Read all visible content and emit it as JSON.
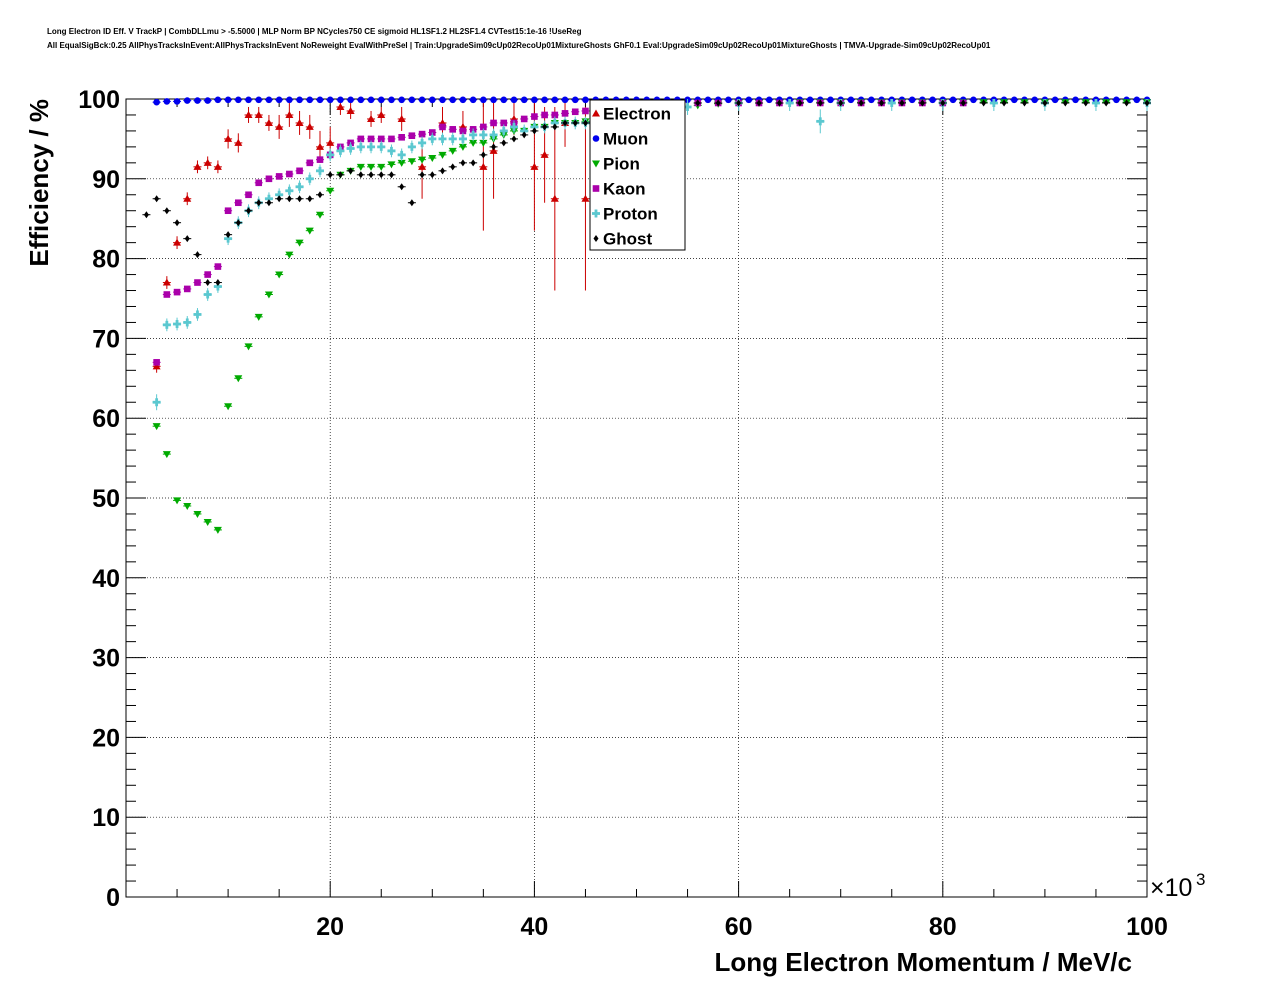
{
  "titles": {
    "line1": "Long Electron ID Eff. V TrackP | CombDLLmu > -5.5000 | MLP Norm BP NCycles750 CE sigmoid HL1SF1.2 HL2SF1.4 CVTest15:1e-16 !UseReg",
    "line2": "All EqualSigBck:0.25 AllPhysTracksInEvent:AllPhysTracksInEvent NoReweight EvalWithPreSel | Train:UpgradeSim09cUp02RecoUp01MixtureGhosts GhF0.1 Eval:UpgradeSim09cUp02RecoUp01MixtureGhosts | TMVA-Upgrade-Sim09cUp02RecoUp01"
  },
  "chart_data": {
    "type": "scatter",
    "xlabel": "Long Electron Momentum / MeV/c",
    "ylabel": "Efficiency / %",
    "x_multiplier": "×10",
    "x_multiplier_exp": "3",
    "xlim": [
      0,
      100
    ],
    "ylim": [
      0,
      100
    ],
    "x_ticks": [
      20,
      40,
      60,
      80,
      100
    ],
    "y_ticks": [
      0,
      10,
      20,
      30,
      40,
      50,
      60,
      70,
      80,
      90,
      100
    ],
    "grid": true,
    "legend_position": "top-center",
    "series": [
      {
        "name": "Electron",
        "color": "#cc0000",
        "marker": "triangle-up",
        "x": [
          3,
          4,
          5,
          6,
          7,
          8,
          9,
          10,
          11,
          12,
          13,
          14,
          15,
          16,
          17,
          18,
          19,
          20,
          21,
          22,
          24,
          25,
          27,
          29,
          31,
          33,
          35,
          36,
          38,
          40,
          41,
          42,
          43,
          45,
          46
        ],
        "y": [
          66.5,
          77,
          82,
          87.5,
          91.5,
          92,
          91.5,
          95,
          94.5,
          98,
          98,
          97,
          96.5,
          98,
          97,
          96.5,
          94,
          94.5,
          99,
          98.5,
          97.5,
          98,
          97.5,
          91.5,
          97,
          96.5,
          91.5,
          93.5,
          97.5,
          91.5,
          93,
          87.5,
          97,
          87.5,
          97
        ],
        "err": [
          0.8,
          0.8,
          0.8,
          0.8,
          0.8,
          0.8,
          0.8,
          1.2,
          1.2,
          1,
          1,
          1,
          1.5,
          1.5,
          1.5,
          1.5,
          2,
          2,
          1,
          1,
          1,
          1,
          1.5,
          4,
          2,
          2,
          8,
          6,
          2,
          8,
          6,
          11.5,
          3,
          11.5,
          3
        ]
      },
      {
        "name": "Muon",
        "color": "#0000ee",
        "marker": "circle",
        "x": [
          3,
          4,
          5,
          6,
          7,
          8,
          9,
          10,
          11,
          12,
          13,
          14,
          15,
          16,
          17,
          18,
          19,
          20,
          21,
          22,
          23,
          24,
          25,
          26,
          27,
          28,
          29,
          30,
          31,
          32,
          33,
          34,
          35,
          36,
          37,
          38,
          39,
          40,
          41,
          42,
          43,
          44,
          45,
          46,
          47,
          48,
          49,
          50,
          51,
          52,
          53,
          54,
          55,
          56,
          57,
          58,
          59,
          60,
          61,
          62,
          63,
          64,
          65,
          66,
          67,
          68,
          69,
          70,
          71,
          72,
          73,
          74,
          75,
          76,
          77,
          78,
          79,
          80,
          81,
          82,
          83,
          84,
          85,
          86,
          87,
          88,
          89,
          90,
          91,
          92,
          93,
          94,
          95,
          96,
          97,
          98,
          99,
          100
        ],
        "y": [
          99.6,
          99.7,
          99.7,
          99.8,
          99.8,
          99.8,
          99.9,
          99.9,
          99.9,
          99.9,
          99.9,
          99.9,
          99.9,
          99.9,
          99.9,
          99.9,
          99.9,
          99.9,
          99.9,
          99.9,
          99.9,
          99.9,
          99.9,
          99.9,
          99.9,
          99.9,
          99.9,
          99.9,
          99.9,
          99.9,
          99.9,
          99.9,
          99.9,
          99.9,
          99.9,
          99.9,
          99.9,
          99.9,
          99.9,
          99.9,
          99.9,
          99.9,
          99.9,
          99.9,
          99.9,
          99.9,
          99.9,
          99.9,
          99.9,
          99.9,
          99.9,
          99.9,
          99.9,
          99.9,
          99.9,
          99.9,
          99.9,
          99.9,
          99.9,
          99.9,
          99.9,
          99.9,
          99.9,
          99.9,
          99.9,
          99.9,
          99.9,
          99.9,
          99.9,
          99.9,
          99.9,
          99.9,
          99.9,
          99.9,
          99.9,
          99.9,
          99.9,
          99.9,
          99.9,
          99.9,
          99.9,
          99.9,
          99.9,
          99.9,
          99.9,
          99.9,
          99.9,
          99.9,
          99.9,
          99.9,
          99.9,
          99.9,
          99.9,
          99.9,
          99.9,
          99.9,
          99.9,
          99.9
        ],
        "err": []
      },
      {
        "name": "Pion",
        "color": "#00aa00",
        "marker": "triangle-down",
        "x": [
          3,
          4,
          5,
          6,
          7,
          8,
          9,
          10,
          11,
          12,
          13,
          14,
          15,
          16,
          17,
          18,
          19,
          20,
          21,
          22,
          23,
          24,
          25,
          26,
          27,
          28,
          29,
          30,
          31,
          32,
          33,
          34,
          35,
          36,
          37,
          38,
          39,
          40,
          41,
          42,
          43,
          44,
          45,
          46,
          48,
          50,
          52,
          54,
          56,
          58,
          60,
          62,
          64,
          66,
          68,
          70,
          72,
          74,
          76,
          78,
          80,
          82,
          84,
          86,
          88,
          90,
          92,
          94,
          96,
          98,
          100
        ],
        "y": [
          59,
          55.5,
          49.7,
          49,
          48,
          47,
          46,
          61.5,
          65,
          69,
          72.7,
          75.5,
          78,
          80.5,
          82,
          83.5,
          85.5,
          88.5,
          90.5,
          91,
          91.5,
          91.5,
          91.5,
          91.8,
          92,
          92.2,
          92.4,
          92.6,
          93,
          93.5,
          94,
          94.5,
          94.5,
          95,
          95.5,
          96,
          96,
          96.5,
          96.5,
          97,
          97,
          97,
          97.2,
          97.5,
          98,
          98.5,
          98.8,
          99,
          99.2,
          99.4,
          99.5,
          99.5,
          99.5,
          99.6,
          99.6,
          99.6,
          99.6,
          99.6,
          99.6,
          99.6,
          99.6,
          99.6,
          99.6,
          99.6,
          99.6,
          99.6,
          99.6,
          99.6,
          99.6,
          99.6,
          99.6
        ],
        "err": []
      },
      {
        "name": "Kaon",
        "color": "#aa00aa",
        "marker": "square",
        "x": [
          3,
          4,
          5,
          6,
          7,
          8,
          9,
          10,
          11,
          12,
          13,
          14,
          15,
          16,
          17,
          18,
          19,
          20,
          21,
          22,
          23,
          24,
          25,
          26,
          27,
          28,
          29,
          30,
          31,
          32,
          33,
          34,
          35,
          36,
          37,
          38,
          39,
          40,
          41,
          42,
          43,
          44,
          45,
          46,
          48,
          50,
          52,
          54,
          56,
          58,
          60,
          62,
          64,
          66,
          68,
          70,
          72,
          74,
          76,
          78,
          80,
          82
        ],
        "y": [
          67,
          75.5,
          75.8,
          76.2,
          77,
          78,
          79,
          86,
          87,
          88,
          89.5,
          90,
          90.3,
          90.6,
          91,
          92,
          92.4,
          93,
          94,
          94.5,
          95,
          95,
          95,
          95,
          95.2,
          95.4,
          95.6,
          95.8,
          96.5,
          96.2,
          96,
          96.2,
          96.5,
          97,
          97,
          97,
          97.5,
          97.8,
          98,
          98,
          98.2,
          98.4,
          98.5,
          98.6,
          99,
          99.2,
          99.5,
          99.5,
          99.5,
          99.5,
          99.5,
          99.5,
          99.5,
          99.5,
          99.5,
          99.5,
          99.5,
          99.5,
          99.5,
          99.5,
          99.5,
          99.5
        ],
        "err": []
      },
      {
        "name": "Proton",
        "color": "#5bc8d0",
        "marker": "cross",
        "x": [
          3,
          4,
          5,
          6,
          7,
          8,
          9,
          10,
          11,
          12,
          13,
          14,
          15,
          16,
          17,
          18,
          19,
          20,
          21,
          22,
          23,
          24,
          25,
          26,
          27,
          28,
          29,
          30,
          31,
          32,
          33,
          34,
          35,
          36,
          37,
          38,
          39,
          40,
          41,
          42,
          43,
          44,
          45,
          46,
          47,
          50,
          55,
          60,
          65,
          68,
          70,
          75,
          80,
          85,
          90,
          95,
          100
        ],
        "y": [
          62,
          71.7,
          71.8,
          72,
          73,
          75.5,
          76.5,
          82.5,
          84.5,
          86,
          87,
          87.5,
          88,
          88.5,
          89,
          90,
          91,
          93,
          93.5,
          93.8,
          94,
          94,
          94,
          93.5,
          93,
          94,
          94.5,
          95,
          95,
          95,
          95,
          95.5,
          95.5,
          95.5,
          96,
          96.5,
          96,
          96.5,
          96.5,
          97,
          97,
          97,
          97,
          97.5,
          96,
          97.5,
          99,
          99.5,
          99.5,
          97.2,
          99.5,
          99.5,
          99.5,
          99.5,
          99.5,
          99.5,
          99.5
        ],
        "err": [
          1,
          0.8,
          0.8,
          0.8,
          0.8,
          0.8,
          0.8,
          0.8,
          0.8,
          0.8,
          0.8,
          0.8,
          0.8,
          0.8,
          0.8,
          0.8,
          0.8,
          0.8,
          0.8,
          0.8,
          0.8,
          0.8,
          0.8,
          0.8,
          0.8,
          0.8,
          0.8,
          0.8,
          0.8,
          0.8,
          0.8,
          0.8,
          0.8,
          0.8,
          0.8,
          0.8,
          0.8,
          0.8,
          0.8,
          0.8,
          0.8,
          0.8,
          0.8,
          0.8,
          1.5,
          1,
          1,
          1,
          1,
          1.5,
          1,
          1,
          1,
          1,
          1,
          1,
          1
        ]
      },
      {
        "name": "Ghost",
        "color": "#000000",
        "marker": "diamond",
        "x": [
          2,
          3,
          4,
          5,
          6,
          7,
          8,
          9,
          10,
          11,
          12,
          13,
          14,
          15,
          16,
          17,
          18,
          19,
          20,
          21,
          22,
          23,
          24,
          25,
          26,
          27,
          28,
          29,
          30,
          31,
          32,
          33,
          34,
          35,
          36,
          37,
          38,
          39,
          40,
          41,
          42,
          43,
          44,
          45,
          46,
          48,
          50,
          52,
          54,
          56,
          58,
          60,
          62,
          64,
          66,
          68,
          70,
          72,
          74,
          76,
          78,
          80,
          82,
          84,
          86,
          88,
          90,
          92,
          94,
          96,
          98,
          100
        ],
        "y": [
          85.5,
          87.5,
          86,
          84.5,
          82.5,
          80.5,
          77,
          77,
          83,
          84.5,
          86,
          87,
          87,
          87.5,
          87.5,
          87.5,
          87.5,
          88,
          90.5,
          90.5,
          91,
          90.5,
          90.5,
          90.5,
          90.5,
          89,
          87,
          90.5,
          90.5,
          91,
          91.5,
          92,
          92,
          93,
          94,
          94.5,
          95,
          95.5,
          96,
          96.5,
          96.5,
          97,
          97,
          97,
          97.5,
          98,
          98.5,
          99,
          99,
          99.5,
          99.5,
          99.5,
          99.5,
          99.5,
          99.5,
          99.5,
          99.5,
          99.5,
          99.5,
          99.5,
          99.5,
          99.5,
          99.5,
          99.5,
          99.5,
          99.5,
          99.5,
          99.5,
          99.5,
          99.5,
          99.5,
          99.5
        ],
        "err": []
      }
    ]
  }
}
